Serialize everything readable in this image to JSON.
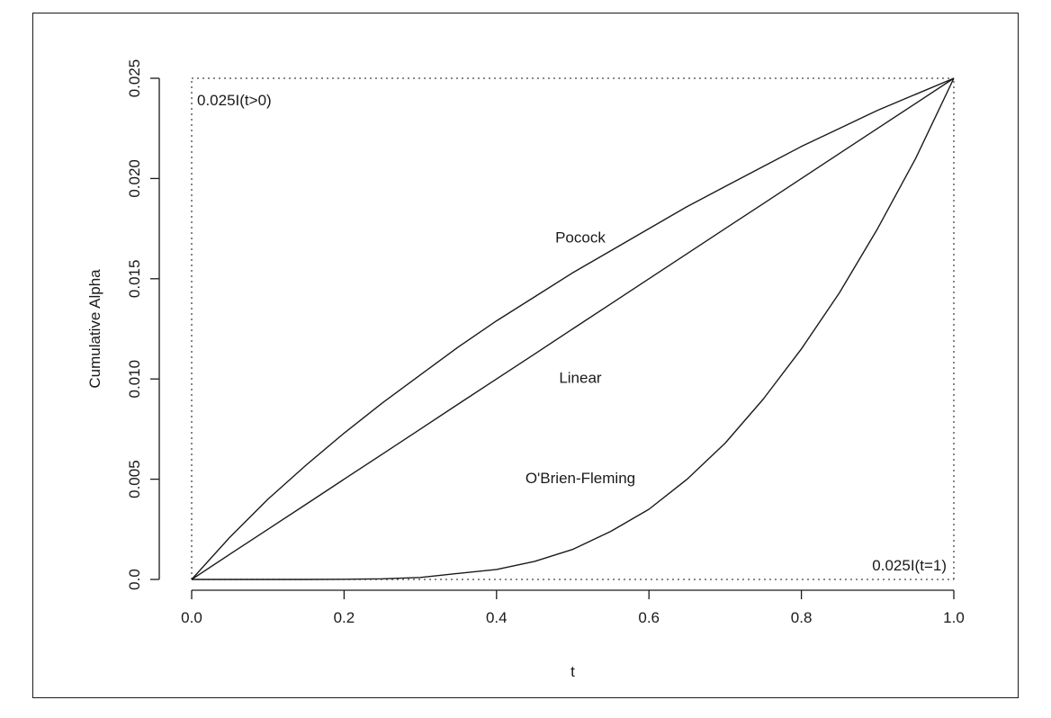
{
  "chart_data": {
    "type": "line",
    "title": "",
    "xlabel": "t",
    "ylabel": "Cumulative Alpha",
    "xlim": [
      0,
      1
    ],
    "ylim": [
      0,
      0.025
    ],
    "x_ticks": [
      0.0,
      0.2,
      0.4,
      0.6,
      0.8,
      1.0
    ],
    "x_tick_labels": [
      "0.0",
      "0.2",
      "0.4",
      "0.6",
      "0.8",
      "1.0"
    ],
    "y_ticks": [
      0.0,
      0.005,
      0.01,
      0.015,
      0.02,
      0.025
    ],
    "y_tick_labels": [
      "0.0",
      "0.005",
      "0.010",
      "0.015",
      "0.020",
      "0.025"
    ],
    "grid": false,
    "legend": "none",
    "x": [
      0.0,
      0.05,
      0.1,
      0.15,
      0.2,
      0.25,
      0.3,
      0.35,
      0.4,
      0.45,
      0.5,
      0.55,
      0.6,
      0.65,
      0.7,
      0.75,
      0.8,
      0.85,
      0.9,
      0.95,
      1.0
    ],
    "series": [
      {
        "label": "Pocock",
        "values": [
          0.0,
          0.0021,
          0.004,
          0.0057,
          0.0073,
          0.0088,
          0.0102,
          0.0116,
          0.0129,
          0.0141,
          0.0153,
          0.0164,
          0.0175,
          0.0186,
          0.0196,
          0.0206,
          0.0216,
          0.0225,
          0.0234,
          0.0242,
          0.025
        ]
      },
      {
        "label": "Linear",
        "values": [
          0.0,
          0.00125,
          0.0025,
          0.00375,
          0.005,
          0.00625,
          0.0075,
          0.00875,
          0.01,
          0.01125,
          0.0125,
          0.01375,
          0.015,
          0.01625,
          0.0175,
          0.01875,
          0.02,
          0.02125,
          0.0225,
          0.02375,
          0.025
        ]
      },
      {
        "label": "O'Brien-Fleming",
        "values": [
          0.0,
          0.0,
          0.0,
          0.0,
          1e-05,
          3e-05,
          0.0001,
          0.0003,
          0.0005,
          0.0009,
          0.0015,
          0.0024,
          0.0035,
          0.005,
          0.0068,
          0.009,
          0.0115,
          0.0143,
          0.0175,
          0.021,
          0.025
        ]
      }
    ],
    "reference_lines": [
      {
        "label": "0.025I(t>0)"
      },
      {
        "label": "0.025I(t=1)"
      }
    ],
    "curve_label_positions": [
      {
        "text": "Pocock",
        "x": 0.51,
        "y": 0.0168
      },
      {
        "text": "Linear",
        "x": 0.51,
        "y": 0.0098
      },
      {
        "text": "O'Brien-Fleming",
        "x": 0.51,
        "y": 0.0048
      }
    ]
  }
}
